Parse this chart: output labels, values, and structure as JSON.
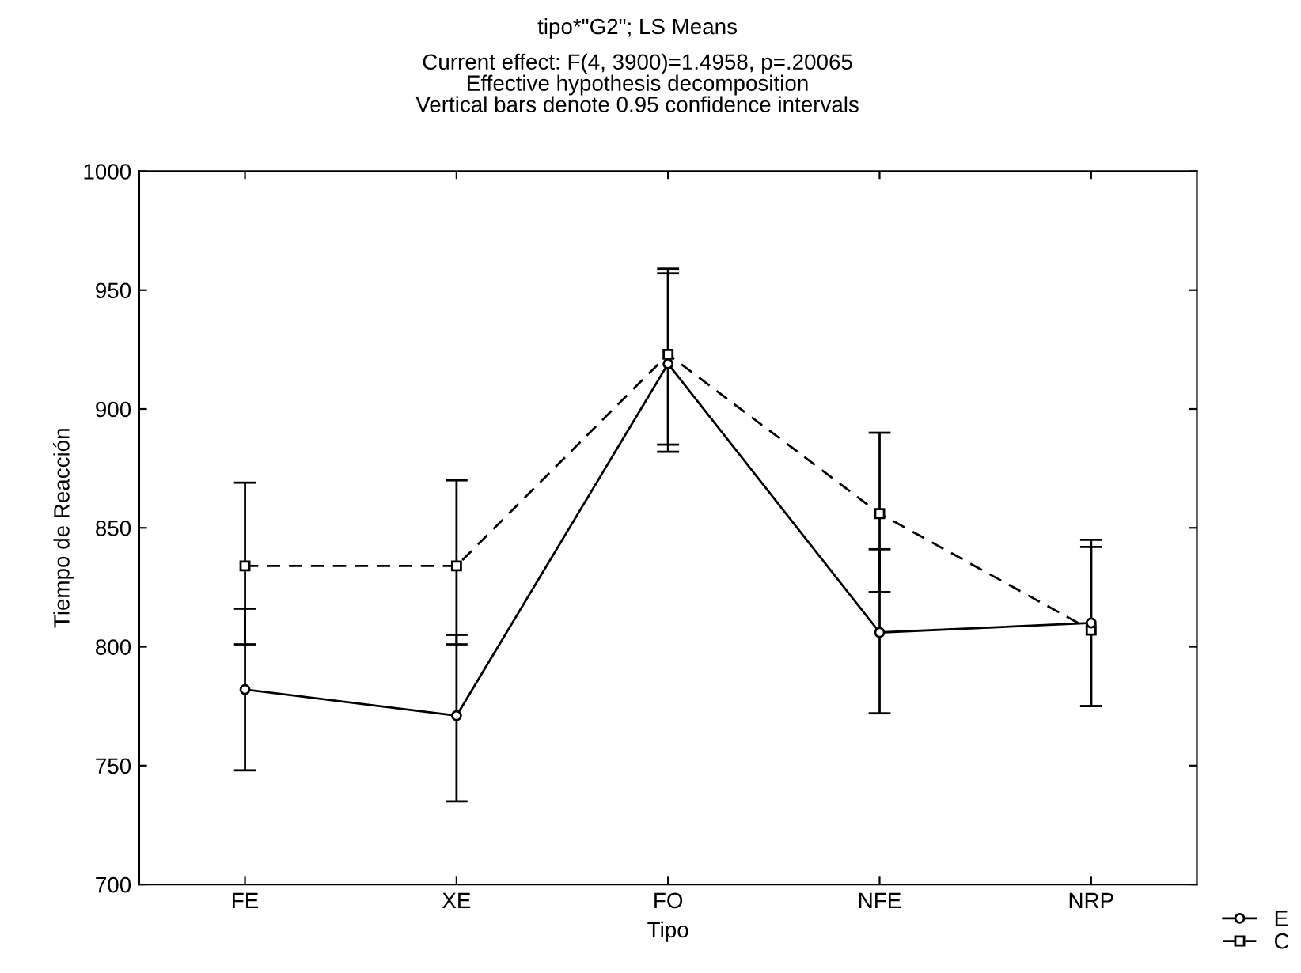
{
  "chart_data": {
    "type": "line",
    "title": "tipo*\"G2\"; LS Means",
    "subtitle": "Current effect: F(4, 3900)=1.4958, p=.20065\nEffective hypothesis decomposition\nVertical bars denote 0.95 confidence intervals",
    "xlabel": "Tipo",
    "ylabel": "Tiempo de Reacción",
    "categories": [
      "FE",
      "XE",
      "FO",
      "NFE",
      "NRP"
    ],
    "series": [
      {
        "name": "E",
        "color": "#000000",
        "marker": "circle",
        "line_style": "solid",
        "values": [
          782,
          771,
          919,
          806,
          810
        ],
        "errors": [
          [
            748,
            816
          ],
          [
            735,
            805
          ],
          [
            882,
            957
          ],
          [
            772,
            841
          ],
          [
            775,
            845
          ]
        ]
      },
      {
        "name": "C",
        "color": "#000000",
        "marker": "square",
        "line_style": "dashed",
        "values": [
          834,
          834,
          923,
          856,
          807
        ],
        "errors": [
          [
            801,
            869
          ],
          [
            801,
            870
          ],
          [
            885,
            959
          ],
          [
            823,
            890
          ],
          [
            775,
            842
          ]
        ]
      }
    ],
    "ylim": [
      700,
      1000
    ],
    "yticks": [
      700,
      750,
      800,
      850,
      900,
      950,
      1000
    ],
    "grid": false,
    "legend": "bottom right"
  }
}
